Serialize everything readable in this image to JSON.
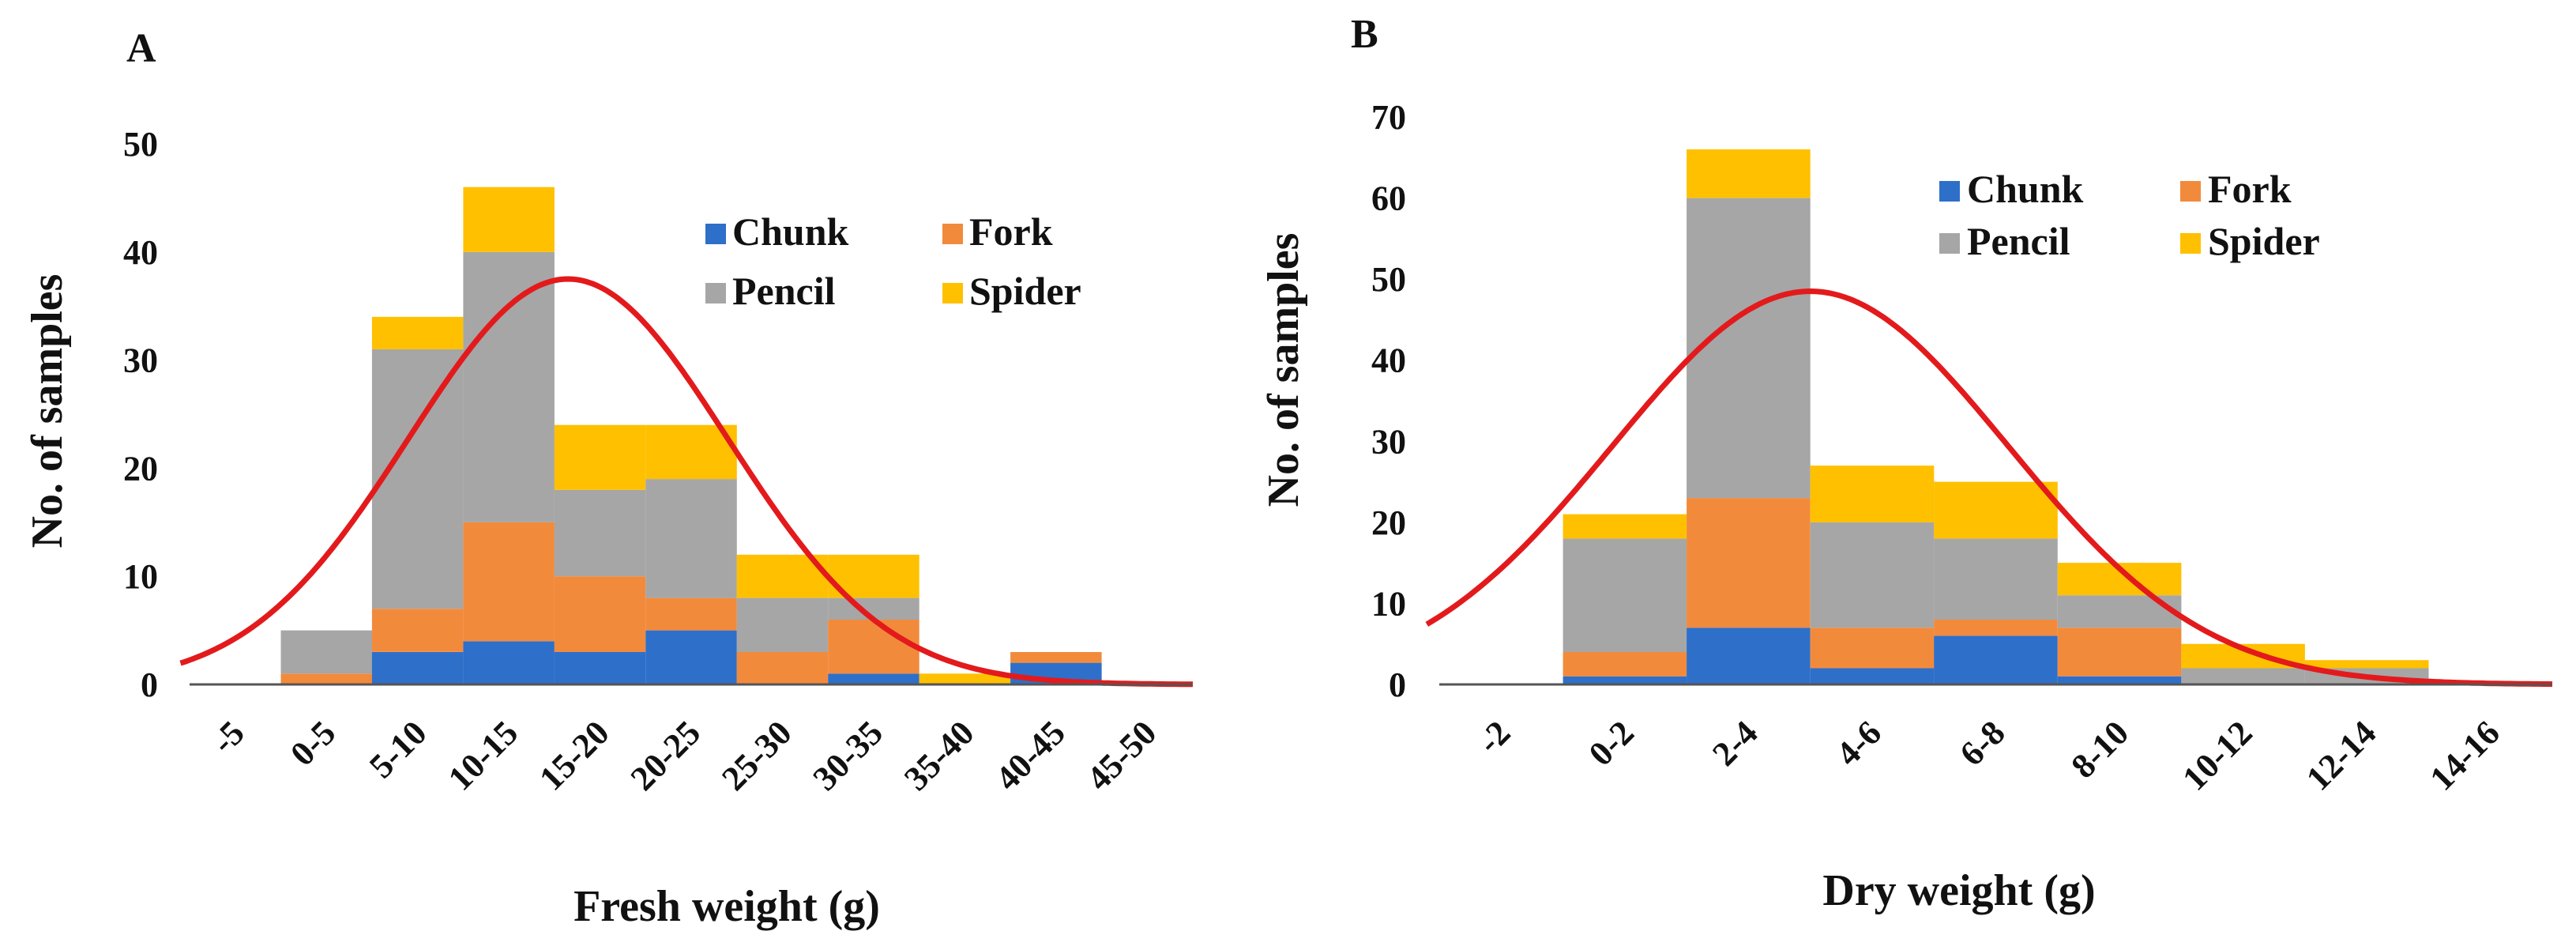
{
  "colors": {
    "Chunk": "#2e6fc9",
    "Fork": "#f28a3c",
    "Pencil": "#a6a6a6",
    "Spider": "#ffc000",
    "curve": "#e31a1c"
  },
  "chart_data": [
    {
      "type": "bar",
      "stacked": true,
      "panel": "A",
      "categories": [
        "-5",
        "0-5",
        "5-10",
        "10-15",
        "15-20",
        "20-25",
        "25-30",
        "30-35",
        "35-40",
        "40-45",
        "45-50"
      ],
      "series": [
        {
          "name": "Chunk",
          "values": [
            0,
            0,
            3,
            4,
            3,
            5,
            0,
            1,
            0,
            2,
            0
          ]
        },
        {
          "name": "Fork",
          "values": [
            0,
            1,
            4,
            11,
            7,
            3,
            3,
            5,
            0,
            1,
            0
          ]
        },
        {
          "name": "Pencil",
          "values": [
            0,
            4,
            24,
            25,
            8,
            11,
            5,
            2,
            0,
            0,
            0
          ]
        },
        {
          "name": "Spider",
          "values": [
            0,
            0,
            3,
            6,
            6,
            5,
            4,
            4,
            1,
            0,
            0
          ]
        }
      ],
      "curve": {
        "type": "normal",
        "peak": 37.5,
        "peak_x": 4.15,
        "sd": 1.75
      },
      "xlabel": "Fresh weight (g)",
      "ylabel": "No. of samples",
      "ylim": [
        0,
        50
      ],
      "yticks": [
        0,
        10,
        20,
        30,
        40,
        50
      ],
      "legend": [
        "Chunk",
        "Fork",
        "Pencil",
        "Spider"
      ],
      "legend_position": "top-right"
    },
    {
      "type": "bar",
      "stacked": true,
      "panel": "B",
      "categories": [
        "-2",
        "0-2",
        "2-4",
        "4-6",
        "6-8",
        "8-10",
        "10-12",
        "12-14",
        "14-16"
      ],
      "series": [
        {
          "name": "Chunk",
          "values": [
            0,
            1,
            7,
            2,
            6,
            1,
            0,
            0,
            0
          ]
        },
        {
          "name": "Fork",
          "values": [
            0,
            3,
            16,
            5,
            2,
            6,
            0,
            0,
            0
          ]
        },
        {
          "name": "Pencil",
          "values": [
            0,
            14,
            37,
            13,
            10,
            4,
            2,
            2,
            0
          ]
        },
        {
          "name": "Spider",
          "values": [
            0,
            3,
            6,
            7,
            7,
            4,
            3,
            1,
            0
          ]
        }
      ],
      "curve": {
        "type": "normal",
        "peak": 48.5,
        "peak_x": 3.0,
        "sd": 1.6
      },
      "xlabel": "Dry weight (g)",
      "ylabel": "No. of samples",
      "ylim": [
        0,
        70
      ],
      "yticks": [
        0,
        10,
        20,
        30,
        40,
        50,
        60,
        70
      ],
      "legend": [
        "Chunk",
        "Fork",
        "Pencil",
        "Spider"
      ],
      "legend_position": "top-right"
    }
  ]
}
